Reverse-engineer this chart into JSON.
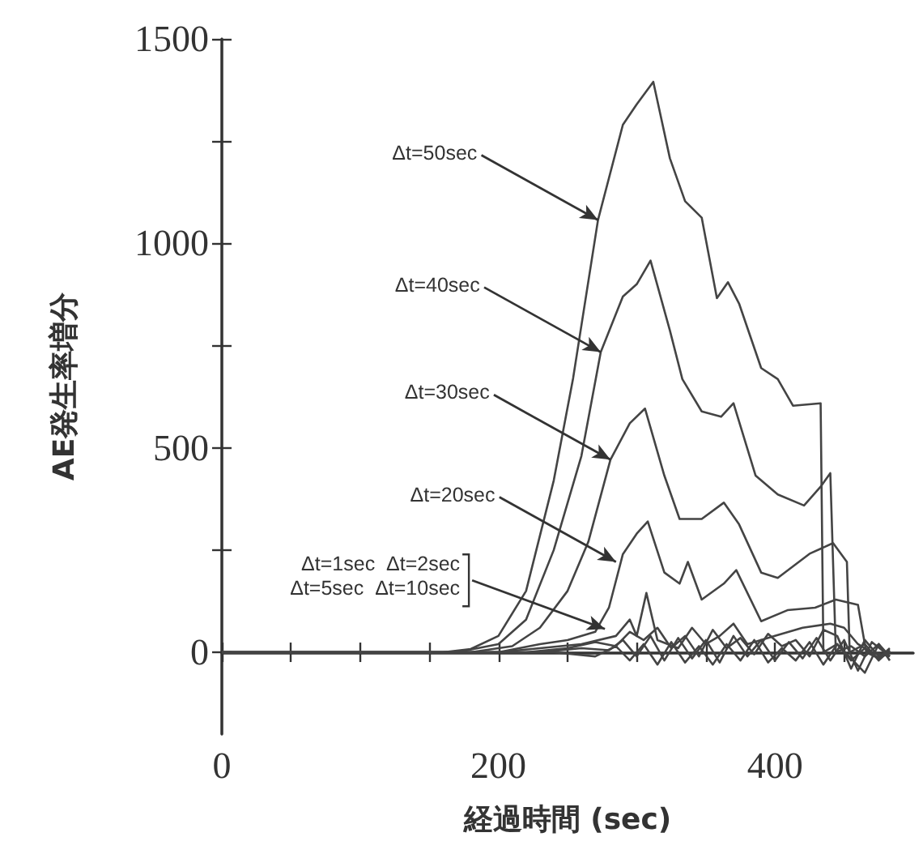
{
  "chart_data": {
    "type": "line",
    "xlabel": "経過時間 (sec)",
    "ylabel": "AE発生率増分",
    "xlim": [
      0,
      500
    ],
    "ylim": [
      -200,
      1500
    ],
    "xticks": [
      0,
      {
        "value": 50,
        "label": null
      },
      {
        "value": 100,
        "label": null
      },
      {
        "value": 150,
        "label": null
      },
      200,
      {
        "value": 250,
        "label": null
      },
      {
        "value": 300,
        "label": null
      },
      {
        "value": 350,
        "label": null
      },
      400,
      {
        "value": 450,
        "label": null
      }
    ],
    "yticks": [
      0,
      {
        "value": 250,
        "label": null
      },
      500,
      {
        "value": 750,
        "label": null
      },
      1000,
      {
        "value": 1250,
        "label": null
      },
      1500
    ],
    "annotations": [
      {
        "text": "Δt=50sec",
        "x": 272,
        "y": 1057
      },
      {
        "text": "Δt=40sec",
        "x": 274,
        "y": 734
      },
      {
        "text": "Δt=30sec",
        "x": 281,
        "y": 471
      },
      {
        "text": "Δt=20sec",
        "x": 285,
        "y": 221
      },
      {
        "text": "Δt=1sec  Δt=2sec\nΔt=5sec  Δt=10sec",
        "x": 277,
        "y": 57
      }
    ],
    "series": [
      {
        "color": "#444444",
        "x": [
          0,
          160,
          180,
          200,
          220,
          240,
          254,
          272,
          290,
          300,
          312,
          324,
          335,
          347,
          358,
          366,
          374,
          390,
          402,
          413,
          433,
          435,
          445,
          455,
          465,
          475,
          483
        ],
        "values": [
          0,
          0,
          8,
          40,
          150,
          420,
          670,
          1057,
          1290,
          1340,
          1395,
          1208,
          1103,
          1063,
          866,
          905,
          853,
          695,
          668,
          603,
          609,
          0,
          20,
          -20,
          10,
          -15,
          0
        ]
      },
      {
        "color": "#444444",
        "x": [
          0,
          170,
          200,
          220,
          240,
          260,
          274,
          290,
          300,
          310,
          324,
          333,
          347,
          361,
          370,
          386,
          402,
          421,
          433,
          440,
          444,
          455,
          465,
          475,
          483
        ],
        "values": [
          0,
          0,
          20,
          80,
          250,
          480,
          734,
          870,
          900,
          958,
          787,
          668,
          589,
          576,
          609,
          432,
          386,
          359,
          405,
          438,
          0,
          15,
          -10,
          20,
          -10
        ]
      },
      {
        "color": "#444444",
        "x": [
          0,
          180,
          210,
          230,
          250,
          265,
          281,
          295,
          306,
          320,
          331,
          347,
          363,
          374,
          390,
          402,
          425,
          442,
          452,
          454,
          465,
          475,
          483
        ],
        "values": [
          0,
          0,
          15,
          60,
          150,
          270,
          471,
          560,
          596,
          432,
          326,
          326,
          366,
          313,
          195,
          182,
          241,
          267,
          221,
          0,
          20,
          -20,
          5
        ]
      },
      {
        "color": "#444444",
        "x": [
          0,
          200,
          230,
          250,
          270,
          280,
          290,
          300,
          308,
          320,
          331,
          337,
          347,
          363,
          372,
          390,
          409,
          429,
          444,
          460,
          466,
          475,
          483
        ],
        "values": [
          0,
          0,
          20,
          30,
          50,
          110,
          240,
          290,
          320,
          195,
          168,
          221,
          129,
          168,
          201,
          76,
          103,
          109,
          129,
          116,
          0,
          -15,
          10
        ]
      },
      {
        "color": "#444444",
        "x": [
          0,
          200,
          260,
          285,
          295,
          300,
          307,
          315,
          330,
          340,
          350,
          360,
          370,
          380,
          400,
          420,
          440,
          450,
          460,
          470,
          483
        ],
        "values": [
          0,
          0,
          20,
          40,
          80,
          40,
          145,
          30,
          10,
          60,
          20,
          40,
          70,
          20,
          40,
          60,
          70,
          60,
          20,
          0,
          -10
        ]
      },
      {
        "color": "#444444",
        "x": [
          0,
          220,
          250,
          270,
          285,
          295,
          305,
          315,
          325,
          335,
          345,
          355,
          365,
          375,
          385,
          395,
          405,
          415,
          425,
          435,
          445,
          455,
          465,
          475,
          483
        ],
        "values": [
          0,
          0,
          10,
          25,
          15,
          50,
          30,
          60,
          10,
          40,
          -10,
          55,
          10,
          35,
          -5,
          45,
          15,
          30,
          -10,
          55,
          40,
          -40,
          30,
          -10,
          5
        ]
      },
      {
        "color": "#444444",
        "x": [
          0,
          230,
          260,
          280,
          290,
          300,
          310,
          320,
          330,
          340,
          350,
          360,
          370,
          380,
          390,
          400,
          410,
          420,
          430,
          440,
          450,
          460,
          470,
          483
        ],
        "values": [
          0,
          0,
          10,
          5,
          30,
          -10,
          40,
          -20,
          35,
          -15,
          30,
          -25,
          40,
          -10,
          30,
          -20,
          25,
          -15,
          35,
          -20,
          30,
          -45,
          25,
          -10
        ]
      },
      {
        "color": "#444444",
        "x": [
          0,
          240,
          270,
          285,
          295,
          305,
          315,
          325,
          335,
          345,
          355,
          365,
          375,
          385,
          395,
          405,
          415,
          425,
          435,
          445,
          455,
          465,
          475,
          483
        ],
        "values": [
          0,
          0,
          -10,
          15,
          -20,
          20,
          -30,
          25,
          -25,
          15,
          -30,
          20,
          -20,
          30,
          -25,
          10,
          -20,
          25,
          -30,
          20,
          -15,
          -50,
          20,
          -20
        ]
      }
    ]
  }
}
